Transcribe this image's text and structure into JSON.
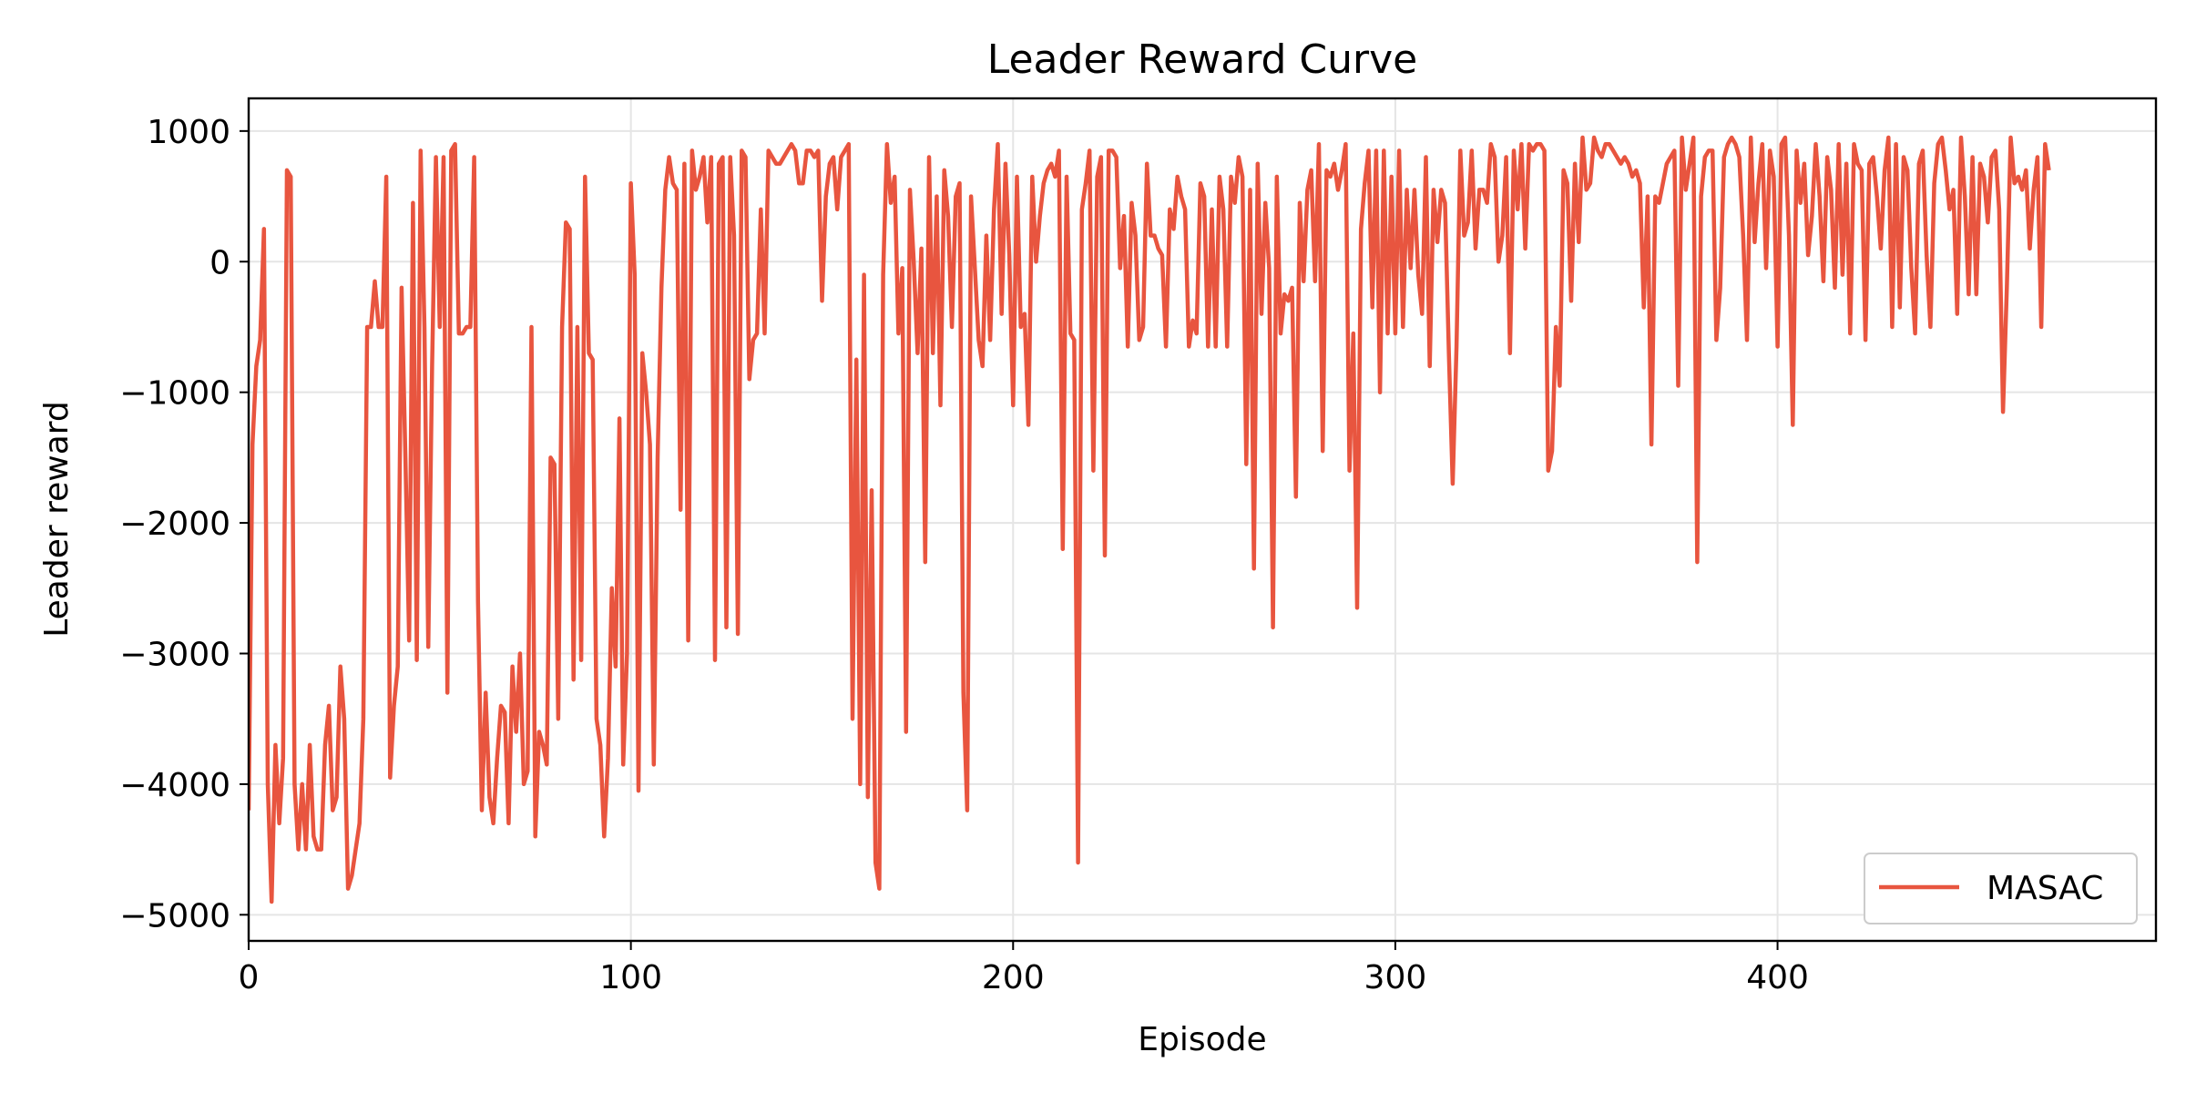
{
  "chart_data": {
    "type": "line",
    "title": "Leader Reward Curve",
    "xlabel": "Episode",
    "ylabel": "Leader reward",
    "xlim": [
      0,
      499
    ],
    "ylim": [
      -5200,
      1250
    ],
    "xticks": [
      0,
      100,
      200,
      300,
      400
    ],
    "xtick_labels": [
      "0",
      "100",
      "200",
      "300",
      "400"
    ],
    "yticks": [
      -5000,
      -4000,
      -3000,
      -2000,
      -1000,
      0,
      1000
    ],
    "ytick_labels": [
      "−5000",
      "−4000",
      "−3000",
      "−2000",
      "−1000",
      "0",
      "1000"
    ],
    "grid": true,
    "legend": {
      "position": "lower-right",
      "entries": [
        "MASAC"
      ]
    },
    "series": [
      {
        "name": "MASAC",
        "color": "#e8553f",
        "x_start": 0,
        "x_step": 1,
        "values": [
          -4200,
          -1400,
          -800,
          -600,
          250,
          -4000,
          -4900,
          -3700,
          -4300,
          -3800,
          700,
          650,
          -4000,
          -4500,
          -4000,
          -4500,
          -3700,
          -4400,
          -4500,
          -4500,
          -3700,
          -3400,
          -4200,
          -4100,
          -3100,
          -3500,
          -4800,
          -4700,
          -4500,
          -4300,
          -3500,
          -500,
          -500,
          -150,
          -500,
          -500,
          650,
          -3950,
          -3400,
          -3100,
          -200,
          -1500,
          -2900,
          450,
          -3050,
          850,
          -500,
          -2950,
          -800,
          800,
          -500,
          800,
          -3300,
          850,
          900,
          -550,
          -550,
          -500,
          -500,
          800,
          -2600,
          -4200,
          -3300,
          -4100,
          -4300,
          -3800,
          -3400,
          -3450,
          -4300,
          -3100,
          -3600,
          -3000,
          -4000,
          -3900,
          -500,
          -4400,
          -3600,
          -3700,
          -3850,
          -1500,
          -1550,
          -3500,
          -500,
          300,
          250,
          -3200,
          -500,
          -3050,
          650,
          -700,
          -750,
          -3500,
          -3700,
          -4400,
          -3800,
          -2500,
          -3100,
          -1200,
          -3850,
          -3000,
          600,
          -100,
          -4050,
          -700,
          -1000,
          -1400,
          -3850,
          -1500,
          -200,
          550,
          800,
          600,
          550,
          -1900,
          750,
          -2900,
          850,
          550,
          650,
          800,
          300,
          800,
          -3050,
          750,
          800,
          -2800,
          800,
          200,
          -2850,
          850,
          800,
          -900,
          -600,
          -550,
          400,
          -550,
          850,
          800,
          750,
          750,
          800,
          850,
          900,
          850,
          600,
          600,
          850,
          850,
          800,
          850,
          -300,
          500,
          750,
          800,
          400,
          800,
          850,
          900,
          -3500,
          -750,
          -4000,
          -100,
          -4100,
          -1750,
          -4600,
          -4800,
          -100,
          900,
          450,
          650,
          -550,
          -50,
          -3600,
          550,
          0,
          -700,
          100,
          -2300,
          800,
          -700,
          500,
          -1100,
          700,
          350,
          -500,
          500,
          600,
          -3300,
          -4200,
          500,
          -50,
          -600,
          -800,
          200,
          -600,
          400,
          900,
          -400,
          750,
          50,
          -1100,
          650,
          -500,
          -400,
          -1250,
          650,
          0,
          350,
          600,
          700,
          750,
          650,
          850,
          -2200,
          650,
          -550,
          -600,
          -4600,
          400,
          600,
          850,
          -1600,
          650,
          800,
          -2250,
          850,
          850,
          800,
          -50,
          350,
          -650,
          450,
          200,
          -600,
          -500,
          750,
          200,
          200,
          100,
          50,
          -650,
          400,
          250,
          650,
          500,
          400,
          -650,
          -450,
          -550,
          600,
          500,
          -650,
          400,
          -650,
          650,
          400,
          -650,
          650,
          450,
          800,
          650,
          -1550,
          550,
          -2350,
          750,
          -400,
          450,
          -50,
          -2800,
          650,
          -550,
          -250,
          -300,
          -200,
          -1800,
          450,
          -150,
          550,
          700,
          -150,
          900,
          -1450,
          700,
          650,
          750,
          550,
          700,
          900,
          -1600,
          -550,
          -2650,
          250,
          600,
          850,
          -350,
          850,
          -1000,
          850,
          -550,
          650,
          -550,
          850,
          -500,
          550,
          -50,
          550,
          -100,
          -400,
          800,
          -800,
          550,
          150,
          550,
          450,
          -700,
          -1700,
          -650,
          850,
          200,
          300,
          850,
          100,
          550,
          550,
          450,
          900,
          800,
          0,
          200,
          800,
          -700,
          850,
          400,
          900,
          100,
          900,
          850,
          900,
          900,
          850,
          -1600,
          -1450,
          -500,
          -950,
          700,
          600,
          -300,
          750,
          150,
          950,
          550,
          600,
          950,
          850,
          800,
          900,
          900,
          850,
          800,
          750,
          800,
          750,
          650,
          700,
          600,
          -350,
          500,
          -1400,
          500,
          450,
          600,
          750,
          800,
          850,
          -950,
          950,
          550,
          750,
          950,
          -2300,
          500,
          800,
          850,
          850,
          -600,
          -200,
          800,
          900,
          950,
          900,
          800,
          200,
          -600,
          950,
          150,
          600,
          900,
          -50,
          850,
          650,
          -650,
          900,
          950,
          200,
          -1250,
          850,
          450,
          750,
          50,
          350,
          900,
          500,
          -150,
          800,
          550,
          -200,
          900,
          -100,
          750,
          -550,
          900,
          750,
          700,
          -600,
          750,
          800,
          500,
          100,
          700,
          950,
          -500,
          900,
          -350,
          800,
          700,
          -50,
          -550,
          750,
          850,
          50,
          -500,
          600,
          900,
          950,
          700,
          400,
          550,
          -400,
          950,
          500,
          -250,
          800,
          -250,
          750,
          650,
          300,
          800,
          850,
          400,
          -1150,
          -200,
          950,
          600,
          650,
          550,
          700,
          100,
          550,
          800,
          -500,
          900,
          700
        ]
      }
    ]
  }
}
